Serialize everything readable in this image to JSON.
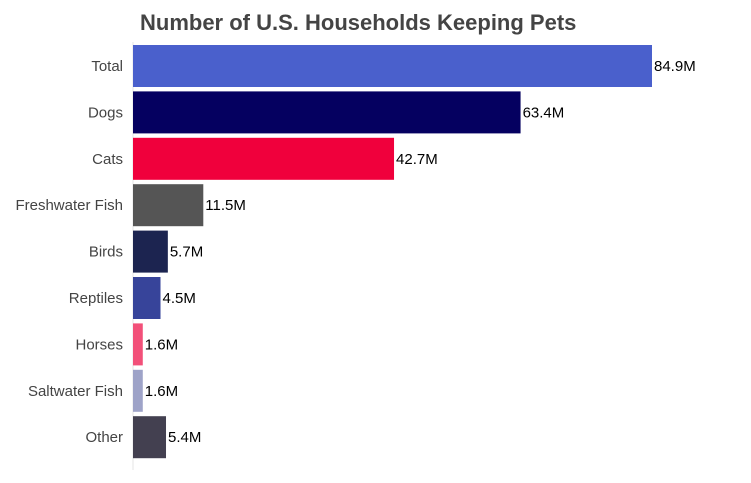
{
  "chart_data": {
    "type": "bar",
    "orientation": "horizontal",
    "title": "Number of U.S. Households Keeping Pets",
    "xlabel": "",
    "ylabel": "",
    "unit_suffix": "M",
    "xlim": [
      0,
      85
    ],
    "grid": false,
    "categories": [
      "Total",
      "Dogs",
      "Cats",
      "Freshwater Fish",
      "Birds",
      "Reptiles",
      "Horses",
      "Saltwater Fish",
      "Other"
    ],
    "values": [
      84.9,
      63.4,
      42.7,
      11.5,
      5.7,
      4.5,
      1.6,
      1.6,
      5.4
    ],
    "labels": [
      "84.9M",
      "63.4M",
      "42.7M",
      "11.5M",
      "5.7M",
      "4.5M",
      "1.6M",
      "1.6M",
      "5.4M"
    ],
    "colors": [
      "#4a60cc",
      "#050060",
      "#f0003c",
      "#555555",
      "#1c2450",
      "#37449a",
      "#f25079",
      "#9ea3c8",
      "#434050"
    ]
  }
}
